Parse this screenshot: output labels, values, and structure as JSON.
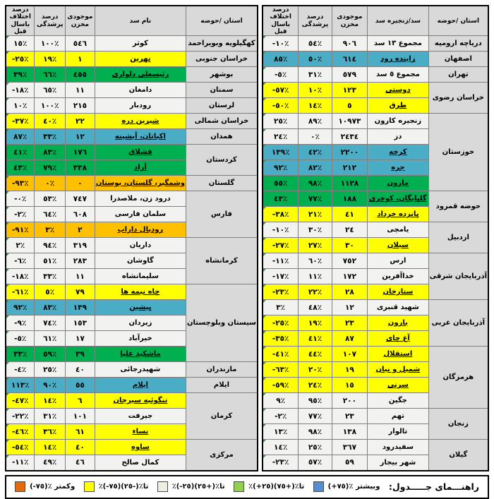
{
  "cell_colors": {
    "white": "#f2f2f0",
    "yellow": "#ffff00",
    "green": "#00b050",
    "blue": "#4bacc6",
    "orange": "#ffc000",
    "header_gray": "#d9d9d9",
    "corner_indicator": "#2e9b3e"
  },
  "right_table": {
    "headers": [
      "استان /حوضه",
      "سد/زنجیره سد",
      "موجودی مخزن",
      "درصد پرشدگی",
      "درصد اختلاف باسال قبل"
    ],
    "groups": [
      {
        "province": "دریاچه ارومیه",
        "rows": [
          {
            "name": "مجموع ١٣ سد",
            "volume": "٩٠٦",
            "fill": "٥٤٪",
            "diff": "-١٠٪",
            "color": "white"
          }
        ]
      },
      {
        "province": "اصفهان",
        "rows": [
          {
            "name": "زاینده رود",
            "volume": "٦١٤",
            "fill": "٥٠٪",
            "diff": "٨٥٪",
            "color": "blue"
          }
        ]
      },
      {
        "province": "تهران",
        "rows": [
          {
            "name": "مجموع ٥ سد",
            "volume": "٥٧٩",
            "fill": "٣١٪",
            "diff": "-٥٪",
            "color": "white"
          }
        ]
      },
      {
        "province": "خراسان رضوی",
        "rows": [
          {
            "name": "دوستی",
            "volume": "١٢٣",
            "fill": "١٠٪",
            "diff": "-٥٧٪",
            "color": "yellow"
          },
          {
            "name": "طرق",
            "volume": "٥",
            "fill": "١٤٪",
            "diff": "-٥٠٪",
            "color": "yellow"
          }
        ]
      },
      {
        "province": "خوزستان",
        "rows": [
          {
            "name": "زنجیره کارون",
            "volume": "١٠٩٧٣",
            "fill": "٨٩٪",
            "diff": "٢٥٪",
            "color": "white"
          },
          {
            "name": "دز",
            "volume": "٢٤٣٤",
            "fill": "٠٪",
            "diff": "٢٤٪",
            "color": "white"
          },
          {
            "name": "کرخه",
            "volume": "٢٢٠٠",
            "fill": "٤٢٪",
            "diff": "١٣٩٪",
            "color": "blue"
          },
          {
            "name": "جره",
            "volume": "٢١٢",
            "fill": "٨٢٪",
            "diff": "٩٢٪",
            "color": "blue"
          },
          {
            "name": "مارون",
            "volume": "١١٢٨",
            "fill": "٩٨٪",
            "diff": "٥٥٪",
            "color": "green"
          }
        ]
      },
      {
        "province": "حوضه قمرود",
        "rows": [
          {
            "name": "گلپایگان، کوچری",
            "volume": "١٨٨",
            "fill": "٧٧٪",
            "diff": "٤٣٪",
            "color": "green"
          },
          {
            "name": "پانزده خرداد",
            "volume": "٤١",
            "fill": "٢١٪",
            "diff": "-٣٨٪",
            "color": "yellow"
          }
        ]
      },
      {
        "province": "اردبیل",
        "rows": [
          {
            "name": "یامچی",
            "volume": "٢٤",
            "fill": "٣٠٪",
            "diff": "-١٠٪",
            "color": "white"
          },
          {
            "name": "سبلان",
            "volume": "٣٠",
            "fill": "٢٧٪",
            "diff": "-٢٧٪",
            "color": "yellow"
          }
        ]
      },
      {
        "province": "آذربایجان شرقی",
        "rows": [
          {
            "name": "ارس",
            "volume": "٧٥٢",
            "fill": "٦٠٪",
            "diff": "-١١٪",
            "color": "white"
          },
          {
            "name": "خداآفرین",
            "volume": "١٧٢",
            "fill": "١١٪",
            "diff": "-١٧٪",
            "color": "white"
          },
          {
            "name": "ستارخان",
            "volume": "٢٨",
            "fill": "٢٢٪",
            "diff": "-٢٣٪",
            "color": "yellow"
          }
        ]
      },
      {
        "province": "آذربایجان غربی",
        "rows": [
          {
            "name": "شهید قنبری",
            "volume": "١٢",
            "fill": "٤٨٪",
            "diff": "٣٪",
            "color": "white"
          },
          {
            "name": "بارون",
            "volume": "٢٣",
            "fill": "١٩٪",
            "diff": "-٢٥٪",
            "color": "yellow"
          },
          {
            "name": "آغ چای",
            "volume": "٨٧",
            "fill": "٤١٪",
            "diff": "-٣٥٪",
            "color": "yellow"
          }
        ]
      },
      {
        "province": "هرمزگان",
        "rows": [
          {
            "name": "استقلال",
            "volume": "١٠٧",
            "fill": "٤٤٪",
            "diff": "-٤١٪",
            "color": "yellow"
          },
          {
            "name": "شمیل و نیان",
            "volume": "١٩",
            "fill": "٢٠٪",
            "diff": "-٦٣٪",
            "color": "yellow"
          },
          {
            "name": "سرنی",
            "volume": "١٥",
            "fill": "٢٤٪",
            "diff": "-٥٩٪",
            "color": "yellow"
          },
          {
            "name": "جگین",
            "volume": "٢٠٠",
            "fill": "٩٥٪",
            "diff": "٩٪",
            "color": "white"
          }
        ]
      },
      {
        "province": "زنجان",
        "rows": [
          {
            "name": "تهم",
            "volume": "٢٣",
            "fill": "٧٧٪",
            "diff": "-٢٪",
            "color": "white"
          },
          {
            "name": "تالوار",
            "volume": "١٣٨",
            "fill": "٩٨٪",
            "diff": "١٣٪",
            "color": "white"
          }
        ]
      },
      {
        "province": "گیلان",
        "rows": [
          {
            "name": "سفیدرود",
            "volume": "٣٦٧",
            "fill": "٢٥٪",
            "diff": "١٤٪",
            "color": "white"
          },
          {
            "name": "شهر بیجار",
            "volume": "٥٩",
            "fill": "٥٧٪",
            "diff": "-٢٣٪",
            "color": "white"
          }
        ]
      }
    ]
  },
  "left_table": {
    "headers": [
      "استان /حوضه",
      "نام سد",
      "موجودی مخزن",
      "درصد پرشدگی",
      "درصد اختلاف باسال قبل"
    ],
    "groups": [
      {
        "province": "کهگیلویه وبویراحمد",
        "rows": [
          {
            "name": "کوثر",
            "volume": "٥٤٦",
            "fill": "١٠٠٪",
            "diff": "١٥٪",
            "color": "white"
          }
        ]
      },
      {
        "province": "خراسان جنوبی",
        "rows": [
          {
            "name": "نهرین",
            "volume": "١",
            "fill": "١٩٪",
            "diff": "-٢٥٪",
            "color": "yellow"
          }
        ]
      },
      {
        "province": "بوشهر",
        "rows": [
          {
            "name": "رئیسعلی دلواری",
            "volume": "٤٥٥",
            "fill": "٦٦٪",
            "diff": "٣٩٪",
            "color": "green"
          }
        ]
      },
      {
        "province": "سمنان",
        "rows": [
          {
            "name": "دامغان",
            "volume": "١١",
            "fill": "٦٥٪",
            "diff": "-١٨٪",
            "color": "white"
          }
        ]
      },
      {
        "province": "لرستان",
        "rows": [
          {
            "name": "رودبار",
            "volume": "٢١٥",
            "fill": "١٠٠٪",
            "diff": "١٠٪",
            "color": "white"
          }
        ]
      },
      {
        "province": "خراسان شمالی",
        "rows": [
          {
            "name": "شیرین دره",
            "volume": "٢٢",
            "fill": "٤٠٪",
            "diff": "-٣٧٪",
            "color": "yellow"
          }
        ]
      },
      {
        "province": "همدان",
        "rows": [
          {
            "name": "اکباتان، آبشینه",
            "volume": "١٢",
            "fill": "٣٣٪",
            "diff": "٨٧٪",
            "color": "blue"
          }
        ]
      },
      {
        "province": "کردستان",
        "rows": [
          {
            "name": "قشلاق",
            "volume": "١٧٦",
            "fill": "٨٣٪",
            "diff": "٤١٪",
            "color": "green"
          },
          {
            "name": "آزاد",
            "volume": "٣٣٨",
            "fill": "٧٩٪",
            "diff": "٤٣٪",
            "color": "green"
          }
        ]
      },
      {
        "province": "گلستان",
        "rows": [
          {
            "name": "وشمگیر، گلستان، بوستان",
            "volume": "٠",
            "fill": "٠٪",
            "diff": "-٩٣٪",
            "color": "orange"
          }
        ]
      },
      {
        "province": "فارس",
        "rows": [
          {
            "name": "درود زن، ملاصدرا",
            "volume": "٧٤٧",
            "fill": "٥٣٪",
            "diff": "-٠٪",
            "color": "white"
          },
          {
            "name": "سلمان فارسی",
            "volume": "٦٠٨",
            "fill": "٦٤٪",
            "diff": "-٢٪",
            "color": "white"
          },
          {
            "name": "رودبال داراب",
            "volume": "٢",
            "fill": "٣٪",
            "diff": "-٩١٪",
            "color": "orange"
          }
        ]
      },
      {
        "province": "کرمانشاه",
        "rows": [
          {
            "name": "داریان",
            "volume": "٣١٩",
            "fill": "٩٤٪",
            "diff": "٢٪",
            "color": "white"
          },
          {
            "name": "گاوشان",
            "volume": "٢٨٣",
            "fill": "٥١٪",
            "diff": "-٦٪",
            "color": "white"
          },
          {
            "name": "سلیمانشاه",
            "volume": "١١",
            "fill": "٣٣٪",
            "diff": "-١٨٪",
            "color": "white"
          }
        ]
      },
      {
        "province": "سیستان وبلوچستان",
        "rows": [
          {
            "name": "چاه نیمه ها",
            "volume": "٧٩",
            "fill": "٥٪",
            "diff": "-٦١٪",
            "color": "yellow"
          },
          {
            "name": "پیشین",
            "volume": "١٣٩",
            "fill": "٨٣٪",
            "diff": "٩٢٪",
            "color": "blue"
          },
          {
            "name": "زیردان",
            "volume": "١٥٣",
            "fill": "٧٤٪",
            "diff": "-٩٪",
            "color": "white"
          },
          {
            "name": "خیرآباد",
            "volume": "١٧",
            "fill": "٦١٪",
            "diff": "-٥٪",
            "color": "white"
          },
          {
            "name": "ماشکید علیا",
            "volume": "٣٩",
            "fill": "٥٩٪",
            "diff": "٣٣٪",
            "color": "green"
          }
        ]
      },
      {
        "province": "مازندران",
        "rows": [
          {
            "name": "شهیدرجائی",
            "volume": "٤٠",
            "fill": "٢٥٪",
            "diff": "-٤٪",
            "color": "white"
          }
        ]
      },
      {
        "province": "ایلام",
        "rows": [
          {
            "name": "ایلام",
            "volume": "٥٥",
            "fill": "٩٠٪",
            "diff": "١١٣٪",
            "color": "blue"
          }
        ]
      },
      {
        "province": "کرمان",
        "rows": [
          {
            "name": "تنگوئیه سیرجان",
            "volume": "٦",
            "fill": "١٤٪",
            "diff": "-٤٧٪",
            "color": "yellow"
          },
          {
            "name": "جیرفت",
            "volume": "١٠١",
            "fill": "٣١٪",
            "diff": "-٢٢٪",
            "color": "white"
          },
          {
            "name": "نساء",
            "volume": "٦١",
            "fill": "٣٦٪",
            "diff": "-٤٦٪",
            "color": "yellow"
          }
        ]
      },
      {
        "province": "مرکزی",
        "rows": [
          {
            "name": "ساوه",
            "volume": "٤٠",
            "fill": "١٤٪",
            "diff": "-٥٤٪",
            "color": "yellow"
          },
          {
            "name": "کمال صالح",
            "volume": "٤٦",
            "fill": "٤٩٪",
            "diff": "-١١٪",
            "color": "white"
          }
        ]
      }
    ]
  },
  "legend": {
    "title": "راهنـــمای جـــــدول:",
    "items": [
      {
        "key": "blue",
        "color": "#538dd5",
        "label": "(+٧٥)٪ وبیشتر"
      },
      {
        "key": "green",
        "color": "#92d050",
        "label": "٪(+٢٥)تا٪(+٧٥)"
      },
      {
        "key": "white",
        "color": "#eeeee2",
        "label": "٪(-٢٥)تا٪(+٢٥)"
      },
      {
        "key": "yellow",
        "color": "#ffff00",
        "label": "٪(-٧٥)تا٪(-٢٥)"
      },
      {
        "key": "orange",
        "color": "#e26b0a",
        "label": "(-٧٥)٪ وکمتر"
      }
    ]
  }
}
